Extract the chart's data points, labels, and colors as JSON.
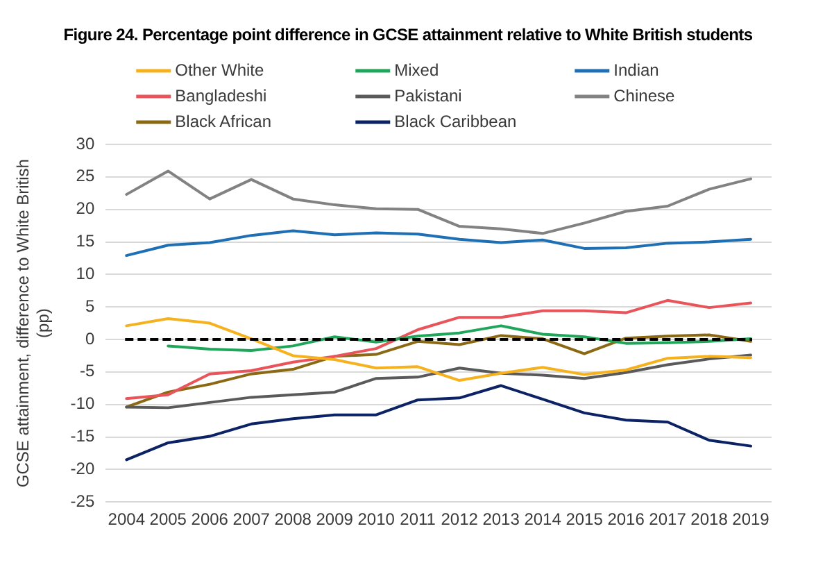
{
  "chart_data": {
    "type": "line",
    "title": "Figure 24. Percentage point difference in GCSE attainment relative to White British students",
    "ylabel": "GCSE attainment, difference to White British (pp)",
    "categories": [
      "2004",
      "2005",
      "2006",
      "2007",
      "2008",
      "2009",
      "2010",
      "2011",
      "2012",
      "2013",
      "2014",
      "2015",
      "2016",
      "2017",
      "2018",
      "2019"
    ],
    "series": [
      {
        "name": "Other White",
        "color": "#f5b21e",
        "values": [
          2.1,
          3.2,
          2.5,
          0.1,
          -2.5,
          -3.1,
          -4.4,
          -4.2,
          -6.3,
          -5.2,
          -4.3,
          -5.4,
          -4.7,
          -2.9,
          -2.6,
          -2.8
        ]
      },
      {
        "name": "Mixed",
        "color": "#1fa65a",
        "values": [
          null,
          -1.0,
          -1.5,
          -1.7,
          -1.0,
          0.4,
          -0.4,
          0.5,
          1.0,
          2.1,
          0.8,
          0.4,
          -0.6,
          -0.5,
          -0.3,
          0.1
        ]
      },
      {
        "name": "Indian",
        "color": "#1f6fb5",
        "values": [
          12.9,
          14.5,
          14.9,
          16.0,
          16.7,
          16.1,
          16.4,
          16.2,
          15.4,
          14.9,
          15.3,
          14.0,
          14.1,
          14.8,
          15.0,
          15.4
        ]
      },
      {
        "name": "Bangladeshi",
        "color": "#e8545a",
        "values": [
          -9.1,
          -8.5,
          -5.3,
          -4.8,
          -3.5,
          -2.6,
          -1.4,
          1.5,
          3.4,
          3.4,
          4.4,
          4.4,
          4.1,
          6.0,
          4.9,
          5.6
        ]
      },
      {
        "name": "Pakistani",
        "color": "#5a5a5a",
        "values": [
          -10.4,
          -10.5,
          -9.7,
          -8.9,
          -8.5,
          -8.1,
          -6.0,
          -5.8,
          -4.4,
          -5.2,
          -5.5,
          -6.0,
          -5.1,
          -3.9,
          -3.0,
          -2.4
        ]
      },
      {
        "name": "Chinese",
        "color": "#828282",
        "values": [
          22.3,
          25.9,
          21.6,
          24.6,
          21.6,
          20.7,
          20.1,
          20.0,
          17.4,
          17.0,
          16.3,
          17.9,
          19.7,
          20.5,
          23.1,
          24.7
        ]
      },
      {
        "name": "Black African",
        "color": "#8b6914",
        "values": [
          -10.4,
          -8.1,
          -6.9,
          -5.3,
          -4.6,
          -2.6,
          -2.3,
          -0.3,
          -0.8,
          0.6,
          0.1,
          -2.2,
          0.2,
          0.5,
          0.7,
          -0.3
        ]
      },
      {
        "name": "Black Caribbean",
        "color": "#0b2265",
        "values": [
          -18.5,
          -15.9,
          -14.9,
          -13.0,
          -12.2,
          -11.6,
          -11.6,
          -9.3,
          -9.0,
          -7.1,
          -9.2,
          -11.3,
          -12.4,
          -12.7,
          -15.5,
          -16.4
        ]
      }
    ],
    "ylim": [
      -25,
      30
    ],
    "yticks": [
      -25,
      -20,
      -15,
      -10,
      -5,
      0,
      5,
      10,
      15,
      20,
      25,
      30
    ],
    "grid": "y",
    "legend": "top",
    "marker": "none",
    "ref_lines": [
      {
        "axis": "y",
        "value": 0,
        "color": "#000000",
        "line_style": "dashed"
      }
    ]
  }
}
